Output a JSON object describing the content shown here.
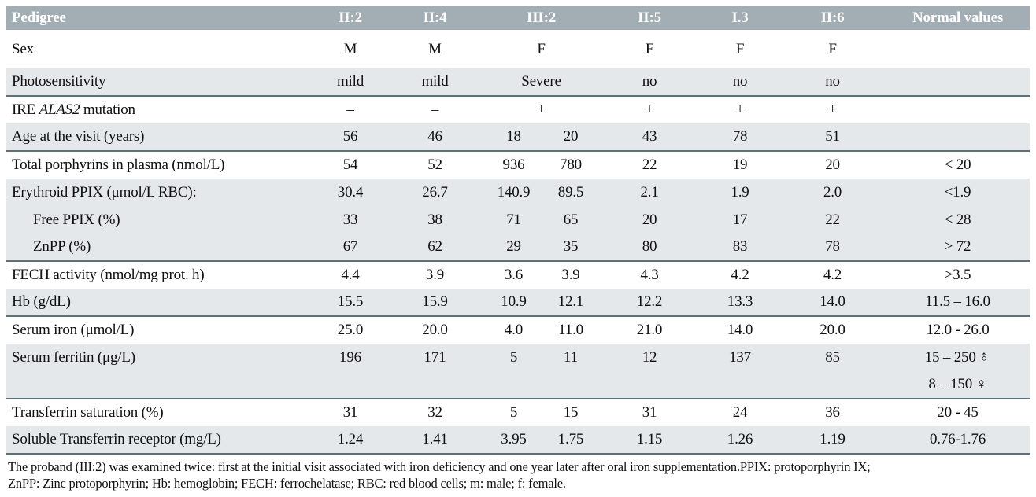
{
  "table": {
    "corner_label": "Pedigree",
    "columns": [
      {
        "label": "II:2",
        "span": 1
      },
      {
        "label": "II:4",
        "span": 1
      },
      {
        "label": "III:2",
        "span": 2
      },
      {
        "label": "II:5",
        "span": 1
      },
      {
        "label": "I.3",
        "span": 1
      },
      {
        "label": "II:6",
        "span": 1
      },
      {
        "label": "Normal values",
        "span": 1
      }
    ],
    "rows": [
      {
        "label": "Sex",
        "tall": true,
        "span3": true,
        "values": [
          "M",
          "M",
          "F",
          "",
          "F",
          "F",
          "F",
          ""
        ]
      },
      {
        "label": "Photosensitivity",
        "shaded": true,
        "rule_below": true,
        "span3": true,
        "values": [
          "mild",
          "mild",
          "Severe",
          "",
          "no",
          "no",
          "no",
          ""
        ]
      },
      {
        "label": "IRE ALAS2 mutation",
        "span3": true,
        "label_parts": [
          [
            "IRE ",
            false
          ],
          [
            "ALAS2",
            true
          ],
          [
            " mutation",
            false
          ]
        ],
        "values": [
          "–",
          "–",
          "+",
          "",
          "+",
          "+",
          "+",
          ""
        ]
      },
      {
        "label": "Age at the visit (years)",
        "shaded": true,
        "rule_below": true,
        "values": [
          "56",
          "46",
          "18",
          "20",
          "43",
          "78",
          "51",
          ""
        ]
      },
      {
        "label": "Total porphyrins in plasma (nmol/L)",
        "values": [
          "54",
          "52",
          "936",
          "780",
          "22",
          "19",
          "20",
          "< 20"
        ]
      },
      {
        "label": "Erythroid PPIX (μmol/L RBC):",
        "shaded": true,
        "values": [
          "30.4",
          "26.7",
          "140.9",
          "89.5",
          "2.1",
          "1.9",
          "2.0",
          "<1.9"
        ]
      },
      {
        "label": "Free PPIX (%)",
        "indent": true,
        "shaded": true,
        "values": [
          "33",
          "38",
          "71",
          "65",
          "20",
          "17",
          "22",
          "< 28"
        ]
      },
      {
        "label": "ZnPP (%)",
        "indent": true,
        "shaded": true,
        "rule_below": true,
        "values": [
          "67",
          "62",
          "29",
          "35",
          "80",
          "83",
          "78",
          "> 72"
        ]
      },
      {
        "label": "FECH activity (nmol/mg prot. h)",
        "values": [
          "4.4",
          "3.9",
          "3.6",
          "3.9",
          "4.3",
          "4.2",
          "4.2",
          ">3.5"
        ]
      },
      {
        "label": "Hb (g/dL)",
        "shaded": true,
        "rule_below": true,
        "values": [
          "15.5",
          "15.9",
          "10.9",
          "12.1",
          "12.2",
          "13.3",
          "14.0",
          "11.5 – 16.0"
        ]
      },
      {
        "label": "Serum iron (μmol/L)",
        "values": [
          "25.0",
          "20.0",
          "4.0",
          "11.0",
          "21.0",
          "14.0",
          "20.0",
          "12.0 - 26.0"
        ]
      },
      {
        "label": "Serum ferritin (μg/L)",
        "shaded": true,
        "values": [
          "196",
          "171",
          "5",
          "11",
          "12",
          "137",
          "85",
          "15 – 250 ♂"
        ]
      },
      {
        "label": "",
        "shaded": true,
        "rule_below": true,
        "values": [
          "",
          "",
          "",
          "",
          "",
          "",
          "",
          "8 – 150 ♀"
        ]
      },
      {
        "label": "Transferrin saturation (%)",
        "values": [
          "31",
          "32",
          "5",
          "15",
          "31",
          "24",
          "36",
          "20 - 45"
        ]
      },
      {
        "label": "Soluble Transferrin receptor (mg/L)",
        "shaded": true,
        "rule_below": true,
        "values": [
          "1.24",
          "1.41",
          "3.95",
          "1.75",
          "1.15",
          "1.26",
          "1.19",
          "0.76-1.76"
        ]
      }
    ]
  },
  "footnote": {
    "line1": "The proband (III:2) was examined twice: first at the initial visit associated with iron deficiency and one year later after oral iron supplementation.PPIX: protoporphyrin IX;",
    "line2": "ZnPP: Zinc protoporphyrin; Hb: hemoglobin; FECH: ferrochelatase; RBC: red blood cells; m: male; f: female."
  },
  "colors": {
    "header_bg": "#a2adb4",
    "shaded_row_bg": "#e4e8eb",
    "rule_line": "#5e707a",
    "header_text": "#ffffff"
  }
}
